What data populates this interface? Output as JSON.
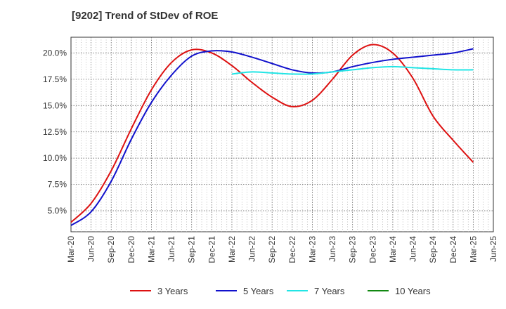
{
  "chart_data": {
    "type": "line",
    "title": "[9202]  Trend of StDev of ROE",
    "xlabel": "",
    "ylabel": "",
    "x_tick_labels": [
      "Mar-20",
      "Jun-20",
      "Sep-20",
      "Dec-20",
      "Mar-21",
      "Jun-21",
      "Sep-21",
      "Dec-21",
      "Mar-22",
      "Jun-22",
      "Sep-22",
      "Dec-22",
      "Mar-23",
      "Jun-23",
      "Sep-23",
      "Dec-23",
      "Mar-24",
      "Jun-24",
      "Sep-24",
      "Dec-24",
      "Mar-25",
      "Jun-25"
    ],
    "y_ticks": [
      5.0,
      7.5,
      10.0,
      12.5,
      15.0,
      17.5,
      20.0
    ],
    "y_tick_labels": [
      "5.0%",
      "7.5%",
      "10.0%",
      "12.5%",
      "15.0%",
      "17.5%",
      "20.0%"
    ],
    "ylim": [
      3.0,
      21.5
    ],
    "grid": true,
    "legend_position": "bottom",
    "series": [
      {
        "name": "3 Years",
        "color": "#dd1111",
        "x_start": 0,
        "values": [
          3.9,
          5.7,
          8.8,
          12.8,
          16.5,
          19.1,
          20.3,
          20.0,
          18.8,
          17.2,
          15.8,
          14.9,
          15.5,
          17.5,
          19.8,
          20.8,
          20.0,
          17.6,
          14.0,
          11.7,
          9.6
        ]
      },
      {
        "name": "5 Years",
        "color": "#1111cc",
        "x_start": 0,
        "values": [
          3.6,
          4.9,
          7.8,
          11.8,
          15.3,
          17.9,
          19.7,
          20.2,
          20.1,
          19.6,
          19.0,
          18.4,
          18.1,
          18.2,
          18.7,
          19.1,
          19.4,
          19.6,
          19.8,
          20.0,
          20.4
        ]
      },
      {
        "name": "7 Years",
        "color": "#22e5e5",
        "x_start": 8,
        "values": [
          18.0,
          18.2,
          18.1,
          18.0,
          18.0,
          18.2,
          18.4,
          18.6,
          18.7,
          18.6,
          18.5,
          18.4,
          18.4
        ]
      },
      {
        "name": "10 Years",
        "color": "#118811",
        "x_start": 0,
        "values": []
      }
    ]
  }
}
